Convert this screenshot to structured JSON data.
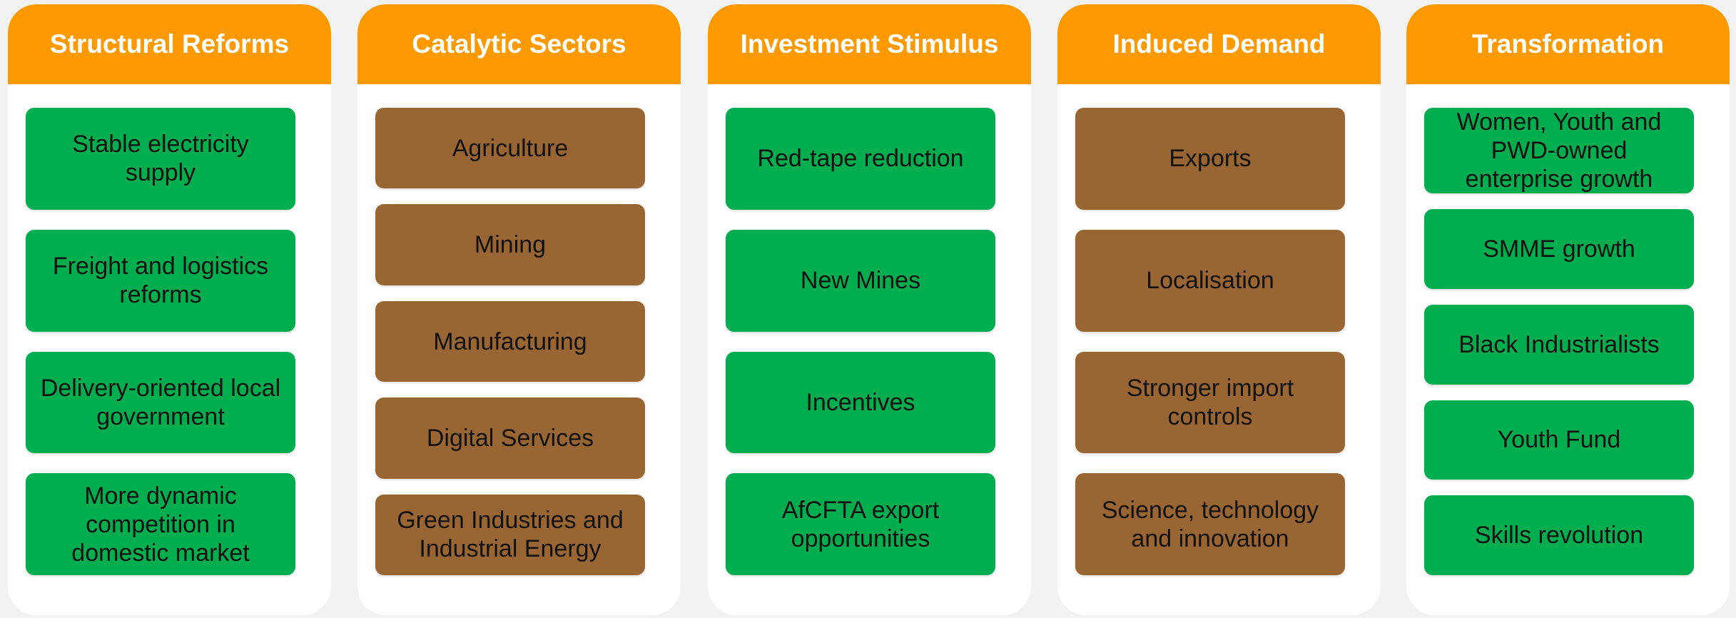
{
  "header_color": "#ff9900",
  "columns": [
    {
      "title": "Structural Reforms",
      "box_color": "#00ad4f",
      "items": [
        "Stable electricity supply",
        "Freight and logistics reforms",
        "Delivery-oriented local government",
        "More dynamic competition in domestic market"
      ]
    },
    {
      "title": "Catalytic Sectors",
      "box_color": "#996633",
      "items": [
        "Agriculture",
        "Mining",
        "Manufacturing",
        "Digital Services",
        "Green Industries and Industrial Energy"
      ]
    },
    {
      "title": "Investment Stimulus",
      "box_color": "#00ad4f",
      "items": [
        "Red-tape reduction",
        "New Mines",
        "Incentives",
        "AfCFTA export opportunities"
      ]
    },
    {
      "title": "Induced Demand",
      "box_color": "#996633",
      "items": [
        "Exports",
        "Localisation",
        "Stronger import controls",
        "Science, technology and innovation"
      ]
    },
    {
      "title": "Transformation",
      "box_color": "#00ad4f",
      "items": [
        "Women, Youth and PWD-owned enterprise growth",
        "SMME growth",
        "Black Industrialists",
        "Youth Fund",
        "Skills revolution"
      ]
    }
  ]
}
